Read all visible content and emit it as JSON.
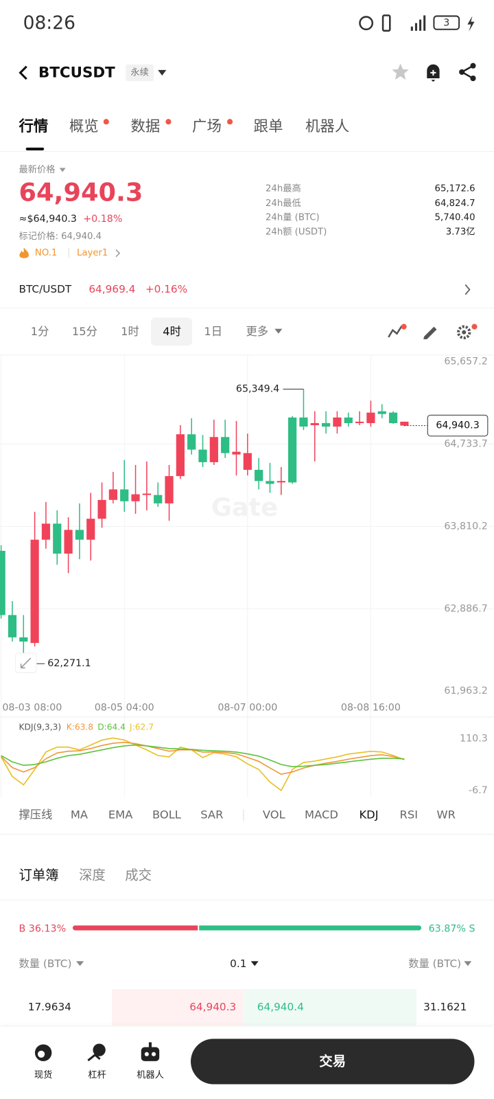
{
  "status_bar": {
    "time": "08:26",
    "battery": "3"
  },
  "header": {
    "symbol": "BTCUSDT",
    "contract": "永续"
  },
  "tabs": [
    "行情",
    "概览",
    "数据",
    "广场",
    "跟单",
    "机器人"
  ],
  "price": {
    "label": "最新价格",
    "last": "64,940.3",
    "usd": "≈$64,940.3",
    "change": "+0.18%",
    "mark": "标记价格: 64,940.4",
    "rank": "NO.1",
    "tag": "Layer1"
  },
  "stats": [
    [
      "24h最高",
      "65,172.6"
    ],
    [
      "24h最低",
      "64,824.7"
    ],
    [
      "24h量 (BTC)",
      "5,740.40"
    ],
    [
      "24h额 (USDT)",
      "3.73亿"
    ]
  ],
  "spot": {
    "pair": "BTC/USDT",
    "price": "64,969.4",
    "change": "+0.16%"
  },
  "intervals": [
    "1分",
    "15分",
    "1时",
    "4时",
    "1日",
    "更多"
  ],
  "chart_data": [
    {
      "type": "candlestick",
      "watermark": "Gate",
      "up_color": "#2ebd85",
      "down_color": "#f0435a",
      "open": [
        62816,
        62566,
        62519,
        63661,
        63841,
        63505,
        63771,
        63661,
        63896,
        64107,
        64225,
        64092,
        64170,
        64178,
        64068,
        64374,
        64843,
        64671,
        64530,
        64812,
        64632,
        64647,
        64632,
        64319,
        64287,
        64319,
        64303,
        64929,
        64968,
        64929,
        65031,
        64968,
        64984,
        65086,
        65070,
        64968,
        64984
      ],
      "high": [
        63599,
        62973,
        62816,
        63974,
        64084,
        63990,
        63912,
        64068,
        64186,
        64303,
        64421,
        64554,
        64499,
        64538,
        64303,
        64499,
        64945,
        65023,
        64835,
        65007,
        65007,
        64992,
        64851,
        64577,
        64522,
        64475,
        65047,
        65349.4,
        65101,
        65101,
        65101,
        65086,
        65101,
        65219,
        65180,
        65101,
        64984
      ],
      "low": [
        62777,
        62519,
        62271.1,
        62464,
        63560,
        63380,
        63286,
        63442,
        63427,
        63794,
        64068,
        63974,
        63951,
        63990,
        64029,
        63873,
        64342,
        64616,
        64475,
        64499,
        64577,
        64381,
        64381,
        64225,
        64186,
        64162,
        64287,
        64890,
        64538,
        64851,
        64851,
        64929,
        64945,
        64929,
        65023,
        64960,
        64935
      ],
      "close": [
        63536,
        62816,
        62566,
        62503,
        63661,
        63841,
        63505,
        63771,
        63661,
        63896,
        64107,
        64225,
        64092,
        64162,
        64162,
        64068,
        64374,
        64843,
        64671,
        64530,
        64812,
        64616,
        64444,
        64444,
        64319,
        64303,
        65031,
        65031,
        64945,
        64968,
        64929,
        65031,
        64968,
        64968,
        65101,
        65086,
        64940.3
      ],
      "xlim": [
        -0.1,
        44
      ],
      "xticks": [
        {
          "value": 0,
          "label": "08-03 08:00"
        },
        {
          "value": 11,
          "label": "08-05 04:00"
        },
        {
          "value": 22,
          "label": "08-07 00:00"
        },
        {
          "value": 33,
          "label": "08-08 16:00"
        }
      ],
      "ylim": [
        61963.2,
        65657.2
      ],
      "yticks": [
        {
          "value": 61963.2,
          "label": "61,963.2"
        },
        {
          "value": 62886.7,
          "label": "62,886.7"
        },
        {
          "value": 63810.2,
          "label": "63,810.2"
        },
        {
          "value": 64733.7,
          "label": "64,733.7"
        },
        {
          "value": 65657.2,
          "label": "65,657.2"
        }
      ],
      "annotations": [
        {
          "index": 27,
          "value": 65349.4,
          "label": "65,349.4"
        },
        {
          "index": 2,
          "value": 62271.1,
          "label": "62,271.1"
        },
        {
          "index": 36,
          "value": 64940.3,
          "label": "64,940.3"
        }
      ]
    },
    {
      "type": "line",
      "title": "KDJ(9,3,3)",
      "xlim": [
        -0.1,
        44
      ],
      "ylim": [
        -6.7,
        110.3
      ],
      "yticks": [
        110.3,
        -6.7
      ],
      "series": [
        {
          "name": "K",
          "label": "K:63.8",
          "color": "#f0973a",
          "values": [
            70,
            45,
            35,
            45,
            65,
            78,
            82,
            83,
            88,
            95,
            100,
            102,
            99,
            94,
            88,
            82,
            85,
            85,
            80,
            80,
            79,
            76,
            68,
            59,
            44,
            30,
            35,
            44,
            50,
            55,
            59,
            64,
            68,
            72,
            74,
            70,
            63.8
          ]
        },
        {
          "name": "D",
          "label": "D:64.4",
          "color": "#5cc23a",
          "values": [
            72,
            58,
            50,
            52,
            58,
            66,
            72,
            75,
            80,
            85,
            90,
            94,
            96,
            94,
            91,
            88,
            87,
            86,
            84,
            83,
            82,
            80,
            76,
            71,
            62,
            52,
            47,
            48,
            50,
            52,
            55,
            58,
            61,
            64,
            66,
            66,
            64.4
          ]
        },
        {
          "name": "J",
          "label": "J:62.7",
          "color": "#e8c020",
          "values": [
            69.2,
            24.9,
            6.0,
            40.7,
            80.3,
            91.3,
            91.3,
            85.0,
            96.1,
            107.1,
            111.9,
            107.1,
            96.1,
            85.0,
            72.4,
            69.2,
            91.3,
            85.0,
            67.6,
            78.7,
            75.5,
            69.2,
            53.4,
            40.7,
            12.3,
            -6.7,
            40.7,
            56.5,
            59.7,
            64.5,
            69.2,
            75.5,
            78.7,
            81.8,
            80.3,
            72.4,
            62.7
          ]
        }
      ]
    }
  ],
  "indicators": [
    "撑压线",
    "MA",
    "EMA",
    "BOLL",
    "SAR",
    "VOL",
    "MACD",
    "KDJ",
    "RSI",
    "WR"
  ],
  "orderbook": {
    "tabs": [
      "订单簿",
      "深度",
      "成交"
    ],
    "buy": 36.13,
    "buy_label": "B 36.13%",
    "sell": 63.87,
    "sell_label": "63.87% S",
    "columns": [
      "数量 (BTC)",
      "0.1",
      "数量 (BTC)"
    ],
    "row": [
      "17.9634",
      "64,940.3",
      "64,940.4",
      "31.1621"
    ]
  },
  "nav": [
    "现货",
    "杠杆",
    "机器人"
  ],
  "trade_button": "交易"
}
